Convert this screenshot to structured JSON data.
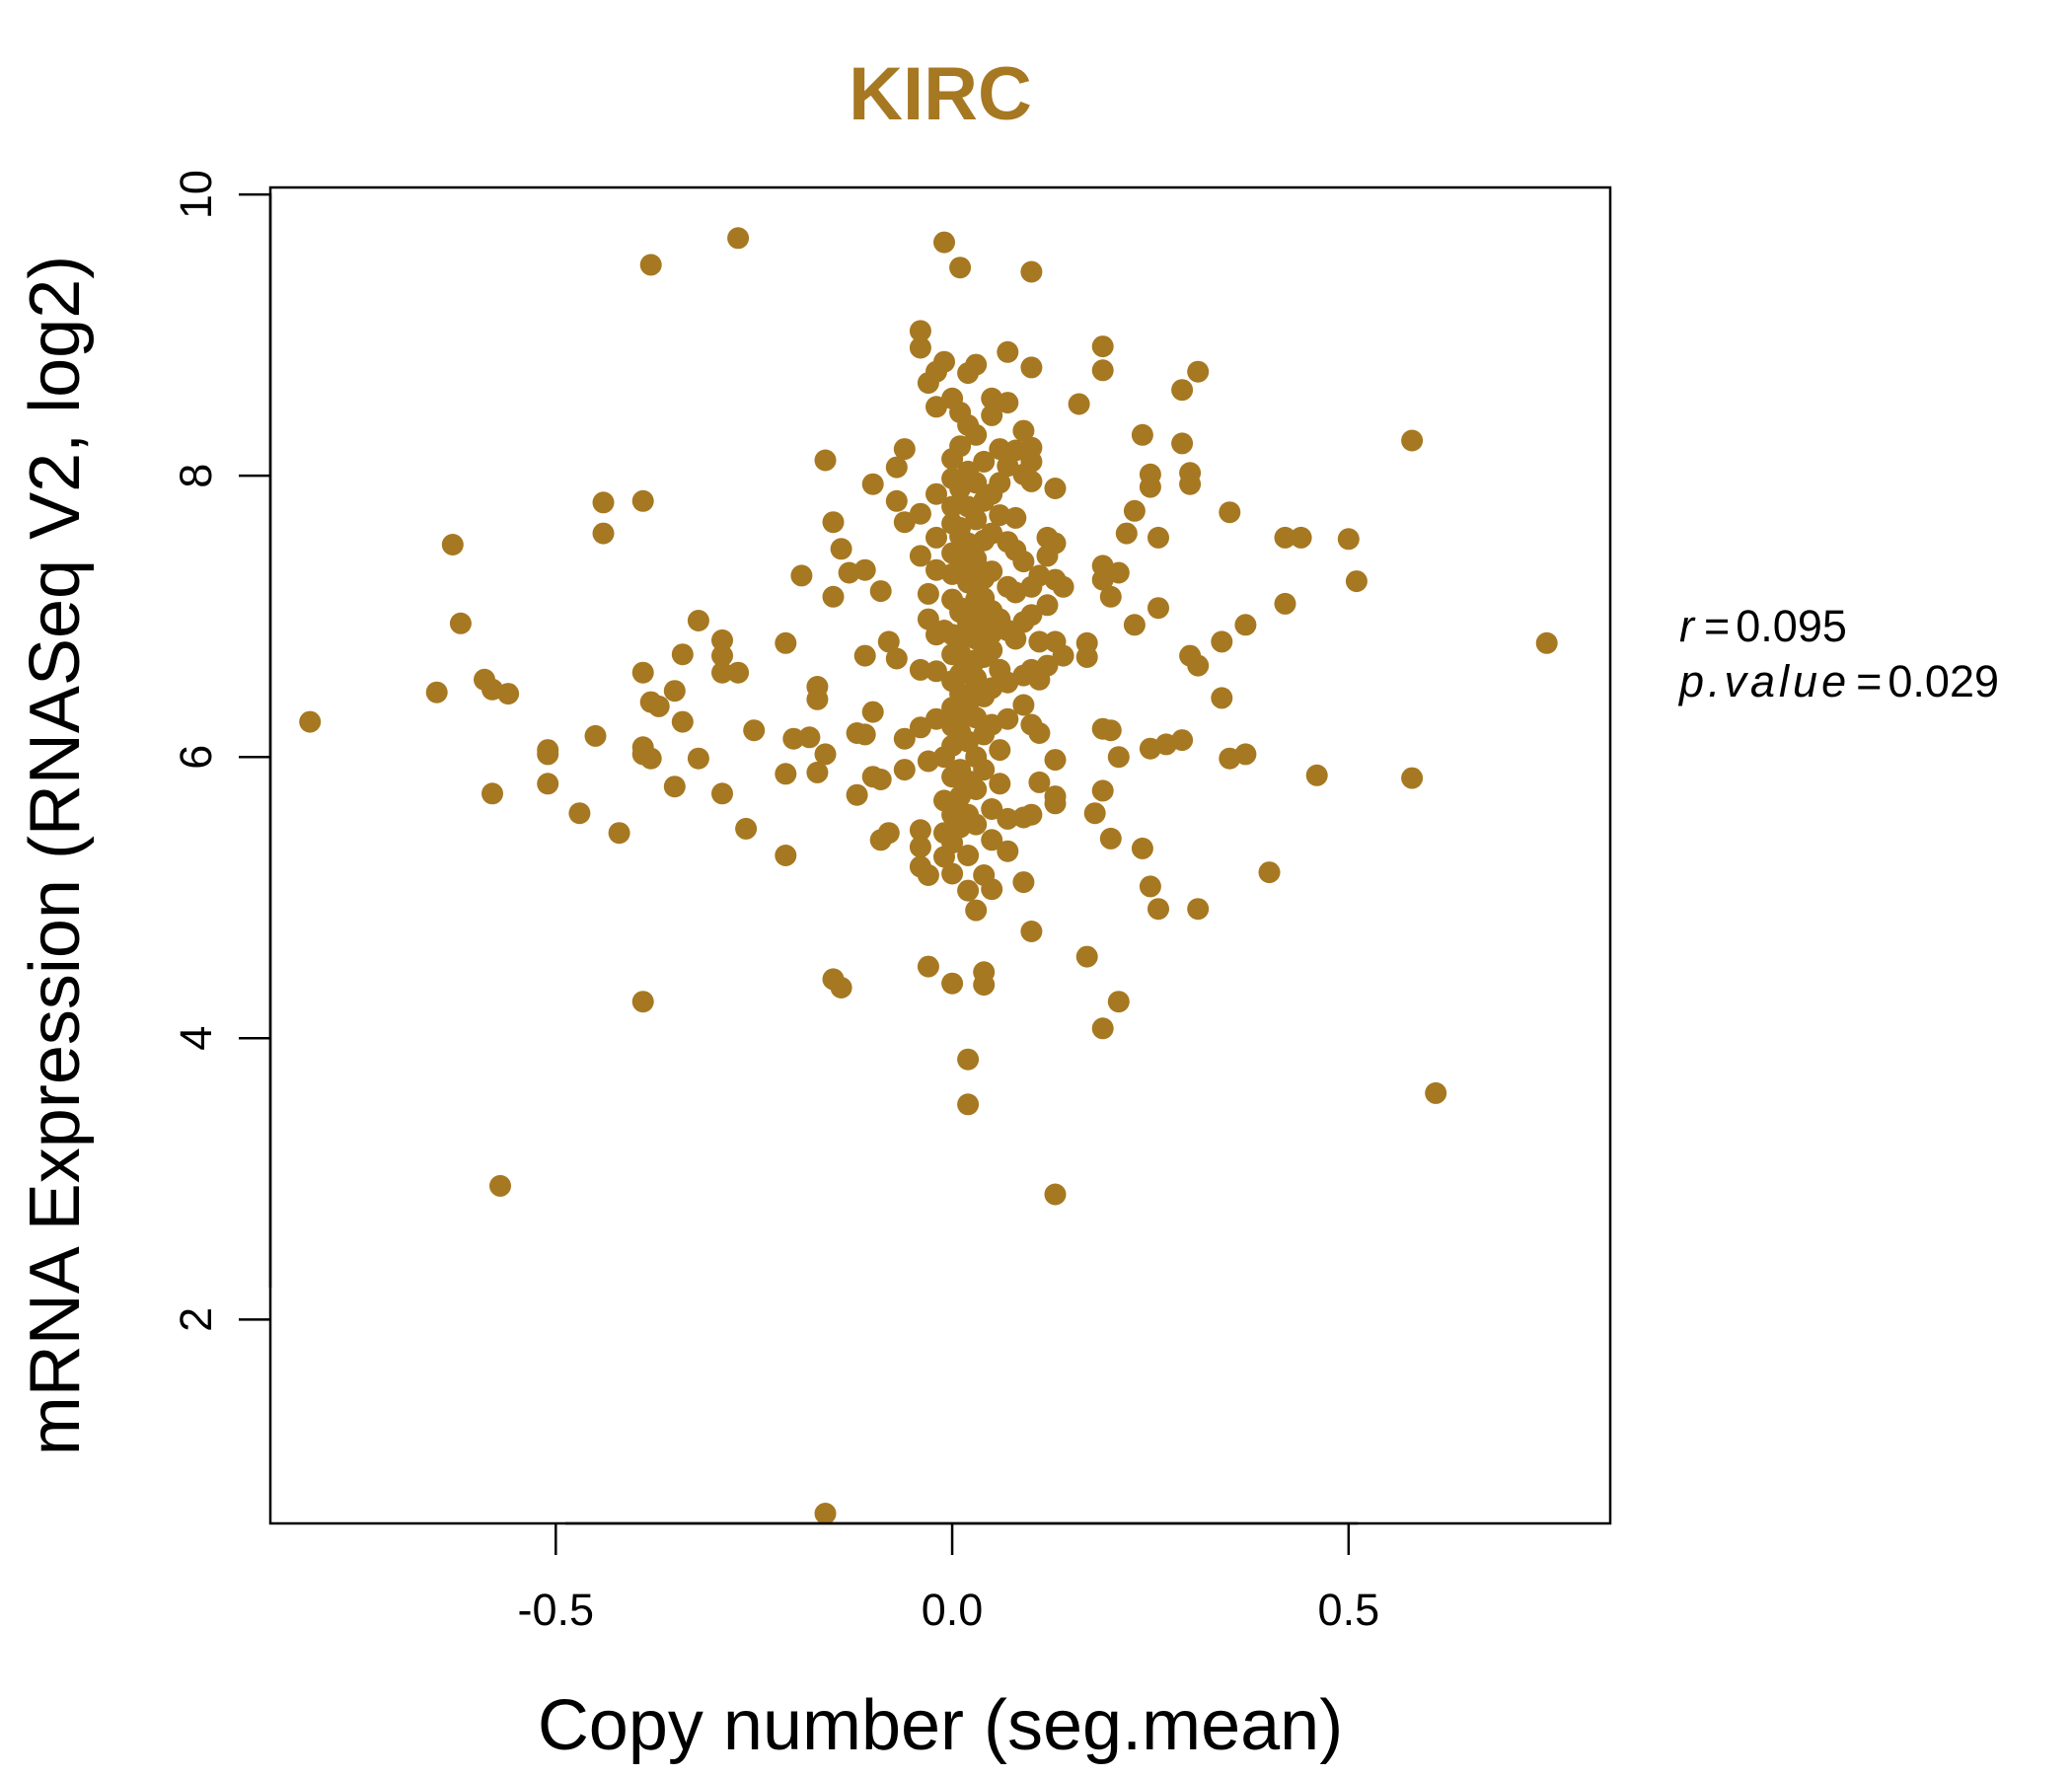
{
  "chart_data": {
    "type": "scatter",
    "title": "KIRC",
    "xlabel": "Copy number (seg.mean)",
    "ylabel": "mRNA Expression (RNASeq V2, log2)",
    "xlim": [
      -0.86,
      0.83
    ],
    "ylim": [
      0.55,
      10.05
    ],
    "x_ticks": [
      -0.5,
      0.0,
      0.5
    ],
    "x_tick_labels": [
      "-0.5",
      "0.0",
      "0.5"
    ],
    "y_ticks": [
      2,
      4,
      6,
      8,
      10
    ],
    "y_tick_labels": [
      "2",
      "4",
      "6",
      "8",
      "10"
    ],
    "grid": false,
    "legend": "none",
    "color": "#A67821",
    "stats": {
      "r_label": "r",
      "r_value": "0.095",
      "p_label": "p.value",
      "p_value": "0.029"
    },
    "points": [
      [
        -0.81,
        6.25
      ],
      [
        -0.65,
        6.46
      ],
      [
        -0.63,
        7.51
      ],
      [
        -0.62,
        6.95
      ],
      [
        -0.59,
        6.55
      ],
      [
        -0.58,
        6.48
      ],
      [
        -0.56,
        6.45
      ],
      [
        -0.58,
        5.74
      ],
      [
        -0.57,
        2.95
      ],
      [
        -0.51,
        6.05
      ],
      [
        -0.51,
        6.02
      ],
      [
        -0.51,
        5.81
      ],
      [
        -0.47,
        5.6
      ],
      [
        -0.45,
        6.15
      ],
      [
        -0.44,
        7.81
      ],
      [
        -0.44,
        7.59
      ],
      [
        -0.42,
        5.46
      ],
      [
        -0.39,
        7.82
      ],
      [
        -0.38,
        9.5
      ],
      [
        -0.39,
        6.6
      ],
      [
        -0.38,
        6.39
      ],
      [
        -0.37,
        6.36
      ],
      [
        -0.39,
        6.07
      ],
      [
        -0.39,
        6.02
      ],
      [
        -0.38,
        5.99
      ],
      [
        -0.39,
        4.26
      ],
      [
        -0.35,
        6.47
      ],
      [
        -0.34,
        6.73
      ],
      [
        -0.34,
        6.25
      ],
      [
        -0.35,
        5.79
      ],
      [
        -0.32,
        6.97
      ],
      [
        -0.32,
        5.99
      ],
      [
        -0.29,
        6.83
      ],
      [
        -0.29,
        6.72
      ],
      [
        -0.29,
        6.6
      ],
      [
        -0.29,
        5.74
      ],
      [
        -0.27,
        9.69
      ],
      [
        -0.27,
        6.6
      ],
      [
        -0.26,
        5.49
      ],
      [
        -0.25,
        6.19
      ],
      [
        -0.21,
        6.81
      ],
      [
        -0.21,
        5.88
      ],
      [
        -0.21,
        5.3
      ],
      [
        -0.2,
        6.13
      ],
      [
        -0.18,
        6.14
      ],
      [
        -0.19,
        7.29
      ],
      [
        -0.17,
        6.5
      ],
      [
        -0.17,
        6.41
      ],
      [
        -0.17,
        5.89
      ],
      [
        -0.16,
        8.11
      ],
      [
        -0.16,
        6.02
      ],
      [
        -0.15,
        7.67
      ],
      [
        -0.15,
        7.14
      ],
      [
        -0.14,
        7.48
      ],
      [
        -0.13,
        7.31
      ],
      [
        -0.15,
        4.42
      ],
      [
        -0.14,
        4.36
      ],
      [
        -0.16,
        0.62
      ],
      [
        -0.11,
        7.33
      ],
      [
        -0.11,
        6.72
      ],
      [
        -0.12,
        6.17
      ],
      [
        -0.11,
        6.16
      ],
      [
        -0.12,
        5.73
      ],
      [
        -0.1,
        7.94
      ],
      [
        -0.1,
        6.32
      ],
      [
        -0.09,
        7.18
      ],
      [
        -0.08,
        6.82
      ],
      [
        -0.1,
        5.86
      ],
      [
        -0.09,
        5.84
      ],
      [
        -0.09,
        5.41
      ],
      [
        -0.08,
        5.46
      ],
      [
        -0.07,
        8.06
      ],
      [
        -0.06,
        8.19
      ],
      [
        -0.07,
        7.82
      ],
      [
        -0.06,
        7.67
      ],
      [
        -0.07,
        6.7
      ],
      [
        -0.06,
        6.13
      ],
      [
        -0.06,
        5.91
      ],
      [
        -0.04,
        9.03
      ],
      [
        -0.04,
        8.91
      ],
      [
        -0.03,
        8.66
      ],
      [
        -0.02,
        8.74
      ],
      [
        -0.02,
        8.49
      ],
      [
        -0.01,
        8.81
      ],
      [
        0.0,
        8.55
      ],
      [
        -0.04,
        7.73
      ],
      [
        -0.04,
        7.43
      ],
      [
        -0.03,
        7.16
      ],
      [
        -0.03,
        6.98
      ],
      [
        -0.04,
        6.62
      ],
      [
        -0.04,
        6.21
      ],
      [
        -0.03,
        5.97
      ],
      [
        -0.04,
        5.48
      ],
      [
        -0.04,
        5.36
      ],
      [
        -0.04,
        5.22
      ],
      [
        -0.03,
        5.16
      ],
      [
        -0.03,
        4.51
      ],
      [
        -0.02,
        7.87
      ],
      [
        -0.02,
        7.56
      ],
      [
        -0.02,
        7.33
      ],
      [
        -0.02,
        6.87
      ],
      [
        -0.02,
        6.61
      ],
      [
        -0.02,
        6.27
      ],
      [
        -0.01,
        6.0
      ],
      [
        -0.01,
        5.69
      ],
      [
        -0.01,
        5.46
      ],
      [
        -0.01,
        5.29
      ],
      [
        0.0,
        8.12
      ],
      [
        0.0,
        7.98
      ],
      [
        0.0,
        7.66
      ],
      [
        0.0,
        7.45
      ],
      [
        0.0,
        7.12
      ],
      [
        0.0,
        6.87
      ],
      [
        0.0,
        6.54
      ],
      [
        0.0,
        6.35
      ],
      [
        0.0,
        6.08
      ],
      [
        0.0,
        5.86
      ],
      [
        0.0,
        5.59
      ],
      [
        0.0,
        5.39
      ],
      [
        0.0,
        5.17
      ],
      [
        0.0,
        4.39
      ],
      [
        -0.01,
        9.66
      ],
      [
        0.01,
        8.45
      ],
      [
        0.01,
        8.21
      ],
      [
        0.01,
        7.91
      ],
      [
        0.01,
        7.63
      ],
      [
        0.01,
        7.36
      ],
      [
        0.01,
        7.03
      ],
      [
        0.01,
        6.74
      ],
      [
        0.01,
        6.45
      ],
      [
        0.01,
        6.18
      ],
      [
        0.01,
        5.91
      ],
      [
        0.01,
        5.72
      ],
      [
        0.01,
        5.5
      ],
      [
        0.01,
        9.48
      ],
      [
        0.02,
        8.73
      ],
      [
        0.02,
        8.36
      ],
      [
        0.02,
        8.03
      ],
      [
        0.02,
        7.78
      ],
      [
        0.02,
        7.52
      ],
      [
        0.02,
        7.24
      ],
      [
        0.02,
        6.95
      ],
      [
        0.02,
        6.62
      ],
      [
        0.02,
        6.37
      ],
      [
        0.02,
        6.11
      ],
      [
        0.02,
        5.83
      ],
      [
        0.02,
        5.59
      ],
      [
        0.02,
        5.3
      ],
      [
        0.02,
        5.05
      ],
      [
        0.02,
        3.85
      ],
      [
        0.02,
        3.53
      ],
      [
        0.03,
        8.79
      ],
      [
        0.03,
        8.29
      ],
      [
        0.03,
        7.95
      ],
      [
        0.03,
        7.69
      ],
      [
        0.03,
        7.41
      ],
      [
        0.03,
        7.12
      ],
      [
        0.03,
        6.84
      ],
      [
        0.03,
        6.56
      ],
      [
        0.03,
        6.28
      ],
      [
        0.03,
        6.0
      ],
      [
        0.03,
        5.77
      ],
      [
        0.03,
        5.52
      ],
      [
        0.03,
        4.91
      ],
      [
        0.04,
        8.1
      ],
      [
        0.04,
        7.82
      ],
      [
        0.04,
        7.54
      ],
      [
        0.04,
        7.27
      ],
      [
        0.04,
        6.99
      ],
      [
        0.04,
        6.71
      ],
      [
        0.04,
        6.43
      ],
      [
        0.04,
        6.16
      ],
      [
        0.04,
        5.91
      ],
      [
        0.04,
        5.16
      ],
      [
        0.04,
        4.47
      ],
      [
        0.04,
        4.38
      ],
      [
        0.05,
        8.55
      ],
      [
        0.05,
        8.43
      ],
      [
        0.05,
        7.87
      ],
      [
        0.05,
        7.59
      ],
      [
        0.05,
        7.32
      ],
      [
        0.05,
        7.04
      ],
      [
        0.05,
        6.76
      ],
      [
        0.05,
        6.49
      ],
      [
        0.05,
        6.23
      ],
      [
        0.05,
        5.63
      ],
      [
        0.05,
        5.41
      ],
      [
        0.05,
        5.06
      ],
      [
        0.06,
        8.19
      ],
      [
        0.06,
        7.95
      ],
      [
        0.06,
        7.72
      ],
      [
        0.06,
        6.98
      ],
      [
        0.06,
        6.62
      ],
      [
        0.06,
        6.05
      ],
      [
        0.06,
        5.81
      ],
      [
        0.07,
        8.88
      ],
      [
        0.07,
        8.52
      ],
      [
        0.07,
        8.07
      ],
      [
        0.07,
        7.53
      ],
      [
        0.07,
        7.21
      ],
      [
        0.07,
        6.9
      ],
      [
        0.07,
        6.53
      ],
      [
        0.07,
        6.27
      ],
      [
        0.07,
        5.56
      ],
      [
        0.07,
        5.33
      ],
      [
        0.08,
        8.18
      ],
      [
        0.08,
        7.7
      ],
      [
        0.08,
        7.47
      ],
      [
        0.08,
        7.17
      ],
      [
        0.08,
        6.84
      ],
      [
        0.09,
        8.32
      ],
      [
        0.09,
        8.01
      ],
      [
        0.09,
        7.39
      ],
      [
        0.09,
        6.96
      ],
      [
        0.09,
        6.58
      ],
      [
        0.09,
        6.37
      ],
      [
        0.09,
        5.57
      ],
      [
        0.09,
        5.11
      ],
      [
        0.1,
        9.45
      ],
      [
        0.1,
        8.77
      ],
      [
        0.1,
        8.2
      ],
      [
        0.1,
        8.1
      ],
      [
        0.1,
        7.96
      ],
      [
        0.1,
        7.21
      ],
      [
        0.1,
        7.01
      ],
      [
        0.1,
        6.62
      ],
      [
        0.1,
        6.23
      ],
      [
        0.1,
        5.59
      ],
      [
        0.1,
        4.76
      ],
      [
        0.11,
        7.29
      ],
      [
        0.11,
        6.82
      ],
      [
        0.11,
        6.55
      ],
      [
        0.11,
        6.17
      ],
      [
        0.11,
        5.82
      ],
      [
        0.12,
        7.56
      ],
      [
        0.12,
        7.43
      ],
      [
        0.12,
        7.08
      ],
      [
        0.12,
        6.65
      ],
      [
        0.13,
        7.91
      ],
      [
        0.13,
        7.52
      ],
      [
        0.13,
        7.26
      ],
      [
        0.13,
        6.82
      ],
      [
        0.13,
        5.98
      ],
      [
        0.13,
        5.72
      ],
      [
        0.13,
        5.67
      ],
      [
        0.13,
        2.89
      ],
      [
        0.14,
        7.21
      ],
      [
        0.14,
        6.72
      ],
      [
        0.16,
        8.51
      ],
      [
        0.17,
        6.81
      ],
      [
        0.17,
        6.71
      ],
      [
        0.17,
        4.58
      ],
      [
        0.18,
        5.6
      ],
      [
        0.19,
        8.92
      ],
      [
        0.19,
        8.75
      ],
      [
        0.19,
        7.36
      ],
      [
        0.19,
        7.26
      ],
      [
        0.19,
        6.2
      ],
      [
        0.19,
        5.76
      ],
      [
        0.19,
        4.07
      ],
      [
        0.2,
        7.14
      ],
      [
        0.2,
        6.19
      ],
      [
        0.2,
        5.42
      ],
      [
        0.21,
        7.31
      ],
      [
        0.21,
        6.0
      ],
      [
        0.21,
        4.26
      ],
      [
        0.22,
        7.59
      ],
      [
        0.23,
        6.94
      ],
      [
        0.23,
        7.75
      ],
      [
        0.24,
        8.29
      ],
      [
        0.24,
        5.35
      ],
      [
        0.25,
        8.01
      ],
      [
        0.25,
        7.92
      ],
      [
        0.25,
        6.06
      ],
      [
        0.25,
        5.08
      ],
      [
        0.26,
        7.56
      ],
      [
        0.26,
        7.06
      ],
      [
        0.26,
        4.92
      ],
      [
        0.27,
        6.09
      ],
      [
        0.29,
        8.61
      ],
      [
        0.29,
        8.23
      ],
      [
        0.29,
        6.12
      ],
      [
        0.3,
        8.02
      ],
      [
        0.3,
        7.94
      ],
      [
        0.3,
        6.72
      ],
      [
        0.31,
        8.74
      ],
      [
        0.31,
        6.65
      ],
      [
        0.31,
        4.92
      ],
      [
        0.34,
        6.42
      ],
      [
        0.34,
        6.82
      ],
      [
        0.35,
        7.74
      ],
      [
        0.35,
        5.99
      ],
      [
        0.37,
        6.94
      ],
      [
        0.37,
        6.02
      ],
      [
        0.4,
        5.18
      ],
      [
        0.42,
        7.56
      ],
      [
        0.42,
        7.09
      ],
      [
        0.44,
        7.56
      ],
      [
        0.46,
        5.87
      ],
      [
        0.5,
        7.55
      ],
      [
        0.51,
        7.25
      ],
      [
        0.58,
        8.25
      ],
      [
        0.58,
        5.85
      ],
      [
        0.61,
        3.61
      ],
      [
        0.75,
        6.81
      ],
      [
        0.0,
        7.78
      ],
      [
        0.01,
        7.06
      ],
      [
        0.02,
        6.86
      ],
      [
        0.03,
        7.2
      ],
      [
        0.01,
        6.3
      ],
      [
        0.03,
        6.69
      ],
      [
        0.02,
        7.48
      ],
      [
        0.04,
        6.88
      ],
      [
        0.0,
        6.73
      ],
      [
        0.01,
        7.57
      ],
      [
        0.02,
        6.44
      ],
      [
        0.03,
        7.37
      ],
      [
        0.0,
        6.22
      ],
      [
        0.04,
        7.13
      ],
      [
        -0.01,
        6.9
      ],
      [
        0.02,
        7.0
      ],
      [
        0.01,
        6.59
      ],
      [
        0.03,
        6.52
      ],
      [
        0.0,
        7.3
      ],
      [
        0.05,
        6.88
      ]
    ]
  }
}
